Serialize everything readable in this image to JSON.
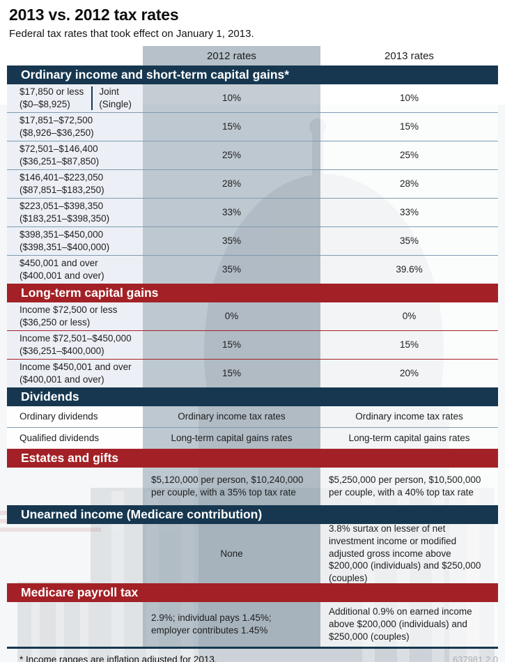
{
  "page": {
    "title": "2013 vs. 2012 tax rates",
    "subtitle": "Federal tax rates that took effect on January 1, 2013.",
    "footnote": "* Income ranges are inflation adjusted for 2013.",
    "doc_id": "637981.2.0",
    "background_watermark": "faded US Capitol dome photo"
  },
  "columns": {
    "col_2012": "2012 rates",
    "col_2013": "2013 rates"
  },
  "colors": {
    "navy": "#16374f",
    "red": "#a32126",
    "header_band": "#b6c1c9"
  },
  "sections": [
    {
      "id": "ordinary",
      "title": "Ordinary income and short-term capital gains*",
      "theme": "navy",
      "rows": [
        {
          "label_lines": [
            "$17,850 or less",
            "($0–$8,925)"
          ],
          "tag_lines": [
            "Joint",
            "(Single)"
          ],
          "v2012": "10%",
          "v2013": "10%"
        },
        {
          "label_lines": [
            "$17,851–$72,500",
            "($8,926–$36,250)"
          ],
          "v2012": "15%",
          "v2013": "15%"
        },
        {
          "label_lines": [
            "$72,501–$146,400",
            "($36,251–$87,850)"
          ],
          "v2012": "25%",
          "v2013": "25%"
        },
        {
          "label_lines": [
            "$146,401–$223,050",
            "($87,851–$183,250)"
          ],
          "v2012": "28%",
          "v2013": "28%"
        },
        {
          "label_lines": [
            "$223,051–$398,350",
            "($183,251–$398,350)"
          ],
          "v2012": "33%",
          "v2013": "33%"
        },
        {
          "label_lines": [
            "$398,351–$450,000",
            "($398,351–$400,000)"
          ],
          "v2012": "35%",
          "v2013": "35%"
        },
        {
          "label_lines": [
            "$450,001 and over",
            "($400,001 and over)"
          ],
          "v2012": "35%",
          "v2013": "39.6%"
        }
      ]
    },
    {
      "id": "ltcg",
      "title": "Long-term capital gains",
      "theme": "red",
      "rows": [
        {
          "label_lines": [
            "Income $72,500 or less",
            "($36,250 or less)"
          ],
          "v2012": "0%",
          "v2013": "0%"
        },
        {
          "label_lines": [
            "Income $72,501–$450,000",
            "($36,251–$400,000)"
          ],
          "v2012": "15%",
          "v2013": "15%"
        },
        {
          "label_lines": [
            "Income $450,001 and over",
            "($400,001 and over)"
          ],
          "v2012": "15%",
          "v2013": "20%"
        }
      ]
    },
    {
      "id": "dividends",
      "title": "Dividends",
      "theme": "navy",
      "rows": [
        {
          "label_lines": [
            "Ordinary dividends"
          ],
          "v2012": "Ordinary income tax rates",
          "v2013": "Ordinary income tax rates"
        },
        {
          "label_lines": [
            "Qualified dividends"
          ],
          "v2012": "Long-term capital gains rates",
          "v2013": "Long-term capital gains rates"
        }
      ]
    },
    {
      "id": "estates",
      "title": "Estates and gifts",
      "theme": "red",
      "rows": [
        {
          "label_lines": [],
          "v2012": "$5,120,000 per person, $10,240,000 per couple, with a 35% top tax rate",
          "v2013": "$5,250,000 per person, $10,500,000 per couple, with a 40% top tax rate"
        }
      ]
    },
    {
      "id": "unearned",
      "title": "Unearned income (Medicare contribution)",
      "theme": "navy",
      "rows": [
        {
          "label_lines": [],
          "v2012": "None",
          "v2013": "3.8% surtax on lesser of net investment income or modified adjusted gross income above $200,000 (individuals) and $250,000 (couples)"
        }
      ]
    },
    {
      "id": "medicare",
      "title": "Medicare payroll tax",
      "theme": "red",
      "rows": [
        {
          "label_lines": [],
          "v2012": "2.9%; individual pays 1.45%; employer contributes 1.45%",
          "v2013": "Additional 0.9% on earned income above $200,000 (individuals) and $250,000 (couples)"
        }
      ]
    }
  ]
}
